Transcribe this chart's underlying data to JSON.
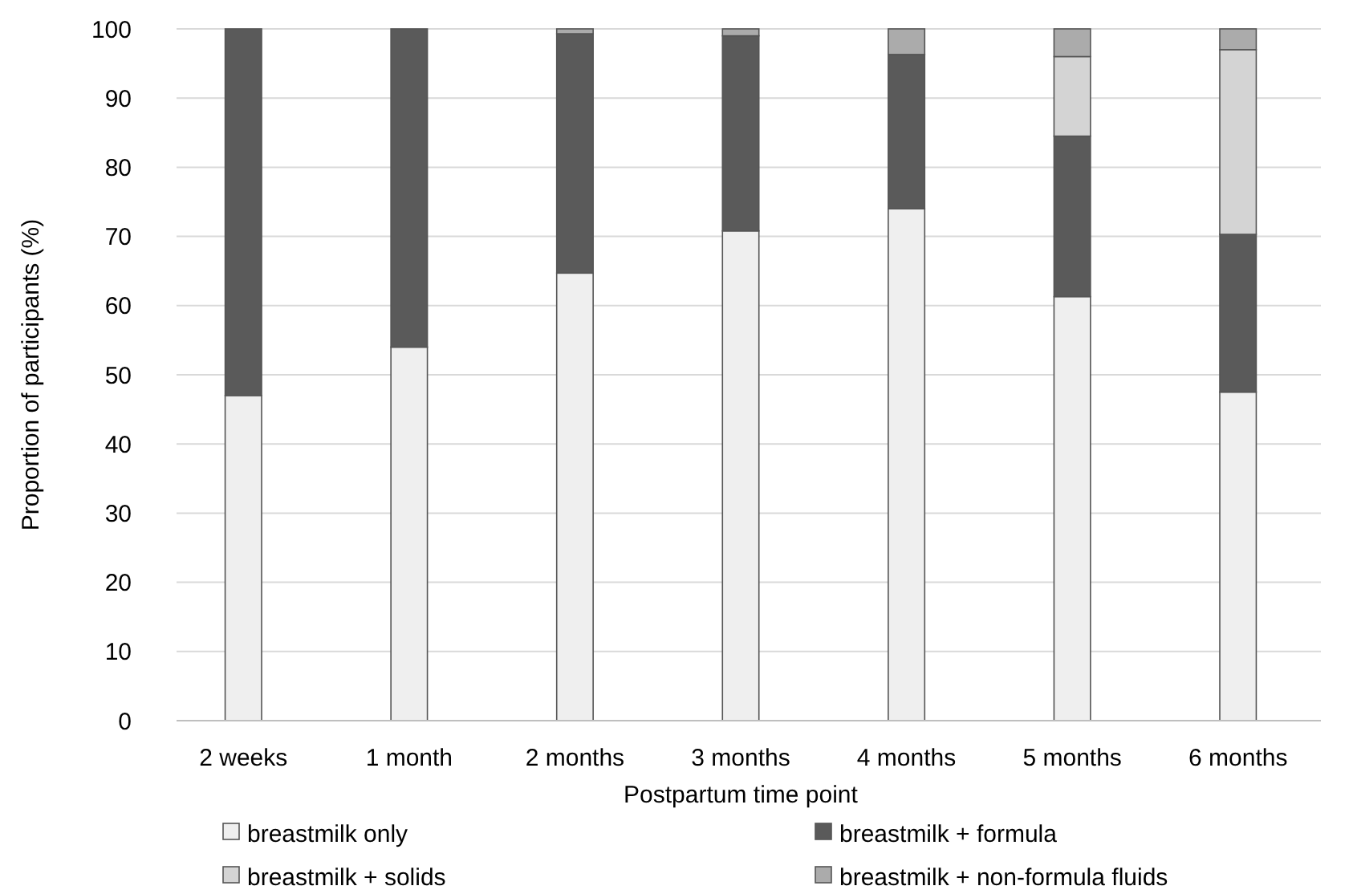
{
  "chart_data": {
    "type": "bar",
    "stacked": true,
    "xlabel": "Postpartum time point",
    "ylabel": "Proportion of participants (%)",
    "categories": [
      "2 weeks",
      "1 month",
      "2 months",
      "3 months",
      "4 months",
      "5 months",
      "6 months"
    ],
    "series": [
      {
        "name": "breastmilk only",
        "color": "#efefef",
        "values": [
          47,
          54,
          64.7,
          70.8,
          74,
          61.3,
          47.5
        ]
      },
      {
        "name": "breastmilk + formula",
        "color": "#5a5a5a",
        "values": [
          53,
          46,
          34.6,
          28.2,
          22.3,
          23.2,
          22.8
        ]
      },
      {
        "name": "breastmilk + solids",
        "color": "#d4d4d4",
        "values": [
          0,
          0,
          0,
          0,
          0,
          11.5,
          26.7
        ]
      },
      {
        "name": "breastmilk + non-formula fluids",
        "color": "#ababab",
        "values": [
          0,
          0,
          0.7,
          1,
          3.7,
          4,
          3
        ]
      }
    ],
    "ylim": [
      0,
      100
    ],
    "yticks": [
      0,
      10,
      20,
      30,
      40,
      50,
      60,
      70,
      80,
      90,
      100
    ],
    "grid": "y",
    "legend": "bottom"
  }
}
